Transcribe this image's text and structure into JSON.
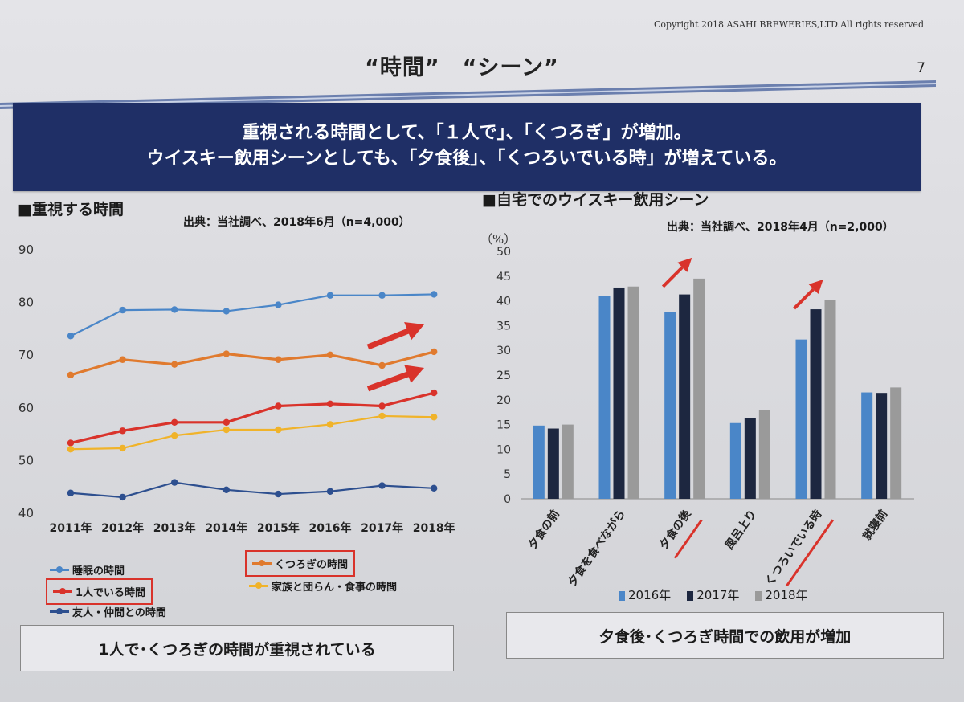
{
  "header": {
    "copyright": "Copyright 2018 ASAHI BREWERIES,LTD.All rights reserved",
    "title": "“時間”　“シーン”",
    "page_number": "7"
  },
  "banner": {
    "line1": "重視される時間として、「１人で」、「くつろぎ」が増加。",
    "line2": "ウイスキー飲用シーンとしても、「夕食後」、「くつろいでいる時」が増えている。"
  },
  "left_panel": {
    "title": "■重視する時間",
    "source": "出典：当社調べ、2018年6月（n=4,000）",
    "summary": "1人で･くつろぎの時間が重視されている"
  },
  "right_panel": {
    "title": "■自宅でのウイスキー飲用シーン",
    "source": "出典：当社調べ、2018年4月（n=2,000）",
    "summary": "夕食後･くつろぎ時間での飲用が増加"
  },
  "colors": {
    "sleep": "#4a86c8",
    "relax": "#e07a2e",
    "alone": "#d9332b",
    "family": "#f0b32a",
    "friends": "#2d4f8f",
    "bar2016": "#4a86c8",
    "bar2017": "#1d2740",
    "bar2018": "#9a9a9a",
    "highlight": "#d9332b"
  },
  "chart_data": [
    {
      "type": "line",
      "title": "■重視する時間",
      "x": [
        "2011年",
        "2012年",
        "2013年",
        "2014年",
        "2015年",
        "2016年",
        "2017年",
        "2018年"
      ],
      "ylim": [
        40,
        90
      ],
      "yticks": [
        40,
        50,
        60,
        70,
        80,
        90
      ],
      "grid": false,
      "legend_position": "bottom",
      "series": [
        {
          "name": "睡眠の時間",
          "key": "sleep",
          "values": [
            73.5,
            78.4,
            78.5,
            78.2,
            79.4,
            81.2,
            81.2,
            81.4
          ]
        },
        {
          "name": "くつろぎの時間",
          "key": "relax",
          "values": [
            66.1,
            69.0,
            68.1,
            70.1,
            69.0,
            69.9,
            67.9,
            70.5
          ],
          "highlighted": true
        },
        {
          "name": "1人でいる時間",
          "key": "alone",
          "values": [
            53.2,
            55.5,
            57.1,
            57.1,
            60.2,
            60.6,
            60.2,
            62.7
          ],
          "highlighted": true
        },
        {
          "name": "家族と団らん・食事の時間",
          "key": "family",
          "values": [
            52.0,
            52.2,
            54.6,
            55.7,
            55.7,
            56.7,
            58.3,
            58.1
          ]
        },
        {
          "name": "友人・仲間との時間",
          "key": "friends",
          "values": [
            43.7,
            42.9,
            45.7,
            44.3,
            43.5,
            44.0,
            45.1,
            44.6
          ]
        }
      ]
    },
    {
      "type": "bar",
      "title": "■自宅でのウイスキー飲用シーン",
      "ylabel": "（%）",
      "ylim": [
        0,
        50
      ],
      "yticks": [
        0,
        5,
        10,
        15,
        20,
        25,
        30,
        35,
        40,
        45,
        50
      ],
      "grid": false,
      "legend_position": "bottom",
      "categories": [
        "夕食の前",
        "夕食を食べながら",
        "夕食の後",
        "風呂上り",
        "くつろいでいる時",
        "就寝前"
      ],
      "highlighted_categories": [
        "夕食の後",
        "くつろいでいる時"
      ],
      "series": [
        {
          "name": "2016年",
          "key": "bar2016",
          "values": [
            14.8,
            41.0,
            37.8,
            15.3,
            32.2,
            21.5
          ]
        },
        {
          "name": "2017年",
          "key": "bar2017",
          "values": [
            14.2,
            42.7,
            41.3,
            16.3,
            38.3,
            21.4
          ]
        },
        {
          "name": "2018年",
          "key": "bar2018",
          "values": [
            15.0,
            42.9,
            44.5,
            18.0,
            40.1,
            22.5
          ]
        }
      ]
    }
  ]
}
